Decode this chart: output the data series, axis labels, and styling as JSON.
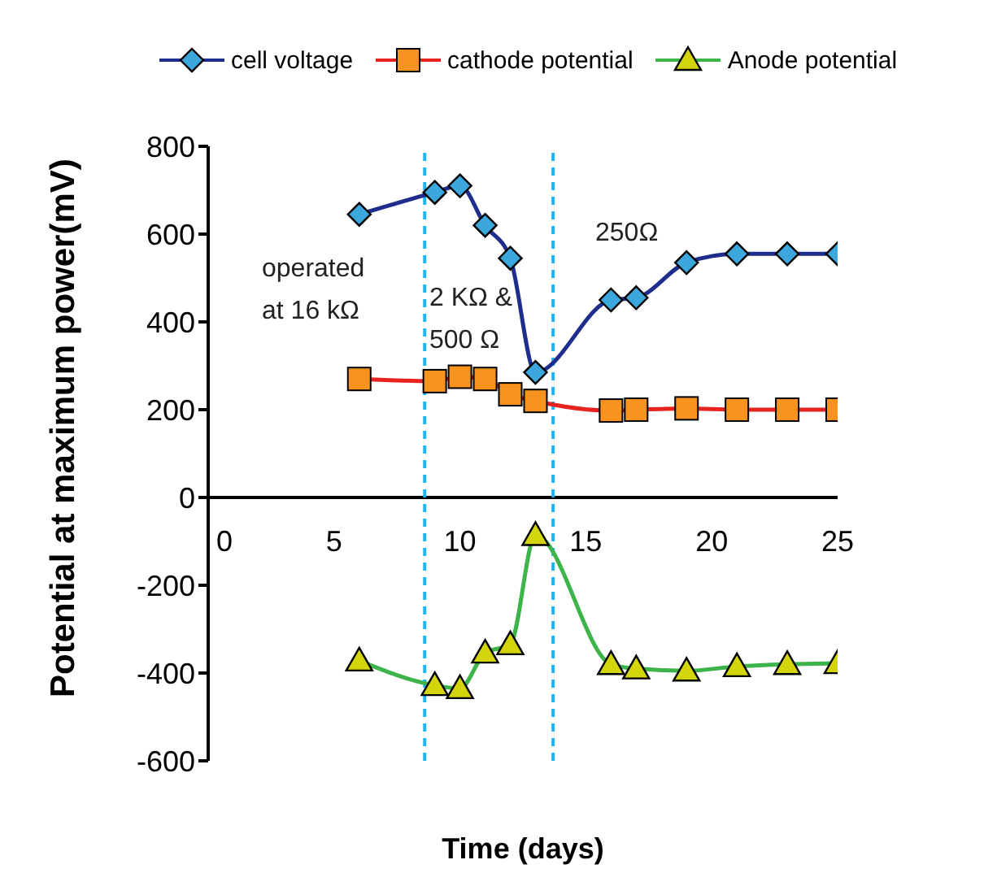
{
  "chart_data": {
    "type": "line",
    "xlabel": "Time (days)",
    "ylabel": "Potential at maximum power(mV)",
    "x": [
      6,
      9,
      10,
      11,
      12,
      13,
      16,
      17,
      19,
      21,
      23,
      25
    ],
    "series": [
      {
        "name": "cell voltage",
        "color": "#1f2e8c",
        "marker": "diamond",
        "colors": [
          "#3ba7dc",
          "#3ba7dc",
          "#3ba7dc",
          "#3ba7dc",
          "#3ba7dc",
          "#3ba7dc",
          "#3ba7dc",
          "#3ba7dc",
          "#3ba7dc",
          "#3ba7dc",
          "#3ba7dc",
          "#3ba7dc"
        ],
        "values": [
          645,
          695,
          710,
          620,
          545,
          285,
          450,
          455,
          535,
          555,
          555,
          555
        ]
      },
      {
        "name": "cathode potential",
        "color": "#e8231f",
        "marker": "square",
        "colors": [
          "#f7931e",
          "#f7931e",
          "#f7931e",
          "#f7931e",
          "#f7931e",
          "#f7931e",
          "#f7931e",
          "#f7931e",
          "#f7931e",
          "#f7931e",
          "#f7931e",
          "#f7931e"
        ],
        "values": [
          270,
          265,
          275,
          270,
          235,
          220,
          198,
          200,
          203,
          200,
          200,
          200
        ]
      },
      {
        "name": "Anode potential",
        "color": "#3cb44a",
        "marker": "triangle",
        "colors": [
          "#d4d40a",
          "#d4d40a",
          "#d4d40a",
          "#d4d40a",
          "#d4d40a",
          "#d4d40a",
          "#d4d40a",
          "#d4d40a",
          "#d4d40a",
          "#d4d40a",
          "#d4d40a",
          "#d4d40a"
        ],
        "values": [
          -372,
          -428,
          -435,
          -354,
          -335,
          -86,
          -380,
          -390,
          -395,
          -385,
          -380,
          -378
        ]
      }
    ],
    "xlim": [
      0,
      25
    ],
    "xticks": [
      0,
      5,
      10,
      15,
      20,
      25
    ],
    "ylim": [
      -600,
      800
    ],
    "yticks": [
      -600,
      -400,
      -200,
      0,
      200,
      400,
      600,
      800
    ],
    "ref_lines": [
      {
        "axis": "x",
        "value": 8.6,
        "color": "#1eb4f0",
        "line_style": "dashed"
      },
      {
        "axis": "x",
        "value": 13.7,
        "color": "#1eb4f0",
        "line_style": "dashed"
      }
    ],
    "annotations": [
      "operated\nat 16 kΩ",
      "2 KΩ &\n500 Ω",
      "250Ω"
    ],
    "legend": "top",
    "grid": false
  }
}
